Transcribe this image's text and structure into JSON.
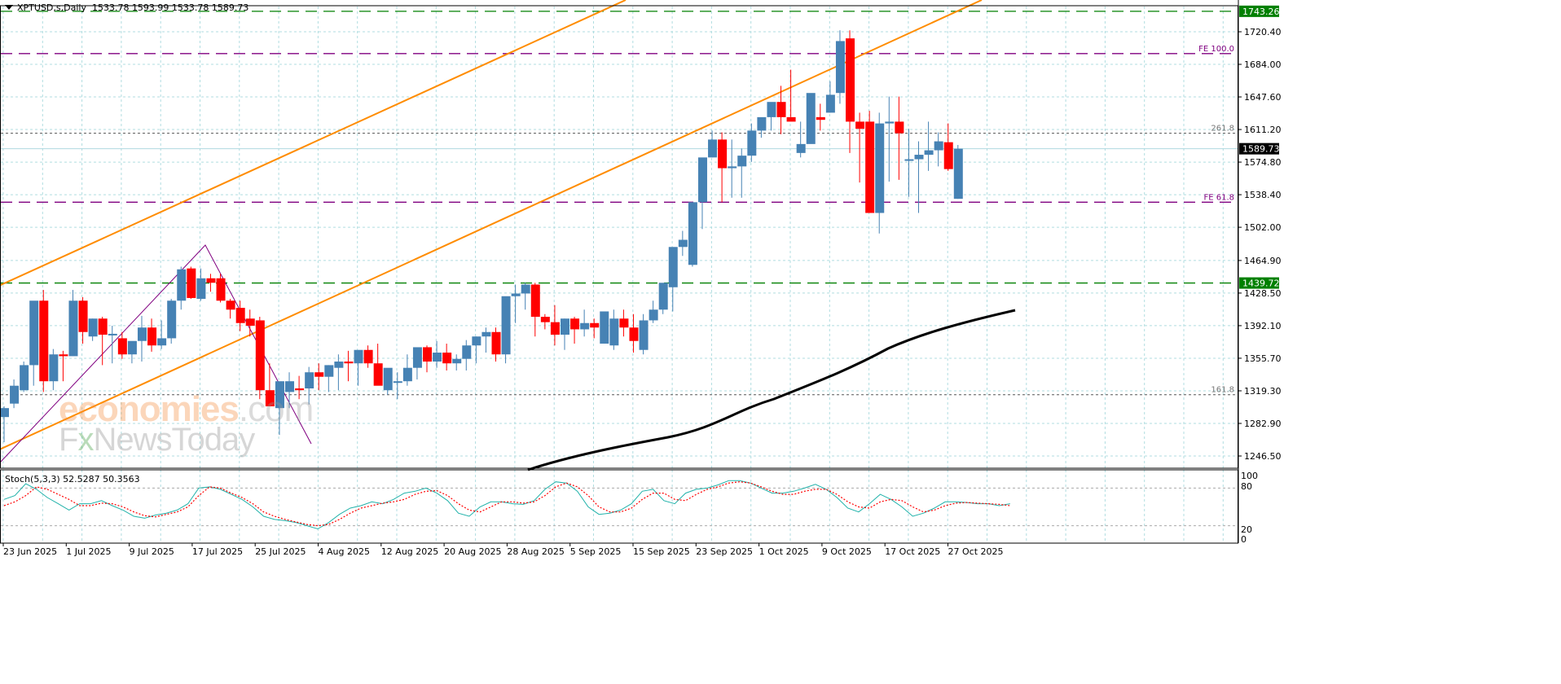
{
  "header": {
    "symbol": "XPTUSD,s,Daily",
    "ohlc": "1533.78 1593.99 1533.78 1589.73"
  },
  "indicator": {
    "label": "Stoch(5,3,3) 52.5287 50.3563",
    "main": 52.5287,
    "signal": 50.3563
  },
  "watermark": {
    "line1a": "economies",
    "line1b": ".com",
    "line2a": "F",
    "line2x": "x",
    "line2b": "NewsToday"
  },
  "colors": {
    "bull": "#4682b4",
    "bear": "#ff0000",
    "grid": "#b0dde0",
    "ma": "#000000",
    "channel": "#ff8c00",
    "fe": "#800080",
    "level": "#008000",
    "stoch_main": "#20b2aa",
    "stoch_signal": "#ff0000"
  },
  "chart_data": {
    "type": "candlestick",
    "title": "XPTUSD,s,Daily",
    "xlabel": "",
    "ylabel": "",
    "ylim": [
      1228.3,
      1750.0
    ],
    "price_ticks": [
      1720.4,
      1684.0,
      1647.6,
      1611.2,
      1574.8,
      1538.4,
      1502.0,
      1464.9,
      1428.5,
      1392.1,
      1355.7,
      1319.3,
      1282.9,
      1246.5
    ],
    "date_ticks": [
      "23 Jun 2025",
      "1 Jul 2025",
      "9 Jul 2025",
      "17 Jul 2025",
      "25 Jul 2025",
      "4 Aug 2025",
      "12 Aug 2025",
      "20 Aug 2025",
      "28 Aug 2025",
      "5 Sep 2025",
      "15 Sep 2025",
      "23 Sep 2025",
      "1 Oct 2025",
      "9 Oct 2025",
      "17 Oct 2025",
      "27 Oct 2025"
    ],
    "last_price": 1589.73,
    "horizontal_levels": [
      {
        "label": "1743.26",
        "price": 1743.26,
        "style": "green-dashed",
        "boxed": true
      },
      {
        "label": "1439.72",
        "price": 1439.72,
        "style": "green-dashed",
        "boxed": true
      },
      {
        "label": "FE 100.0",
        "price": 1696.0,
        "style": "purple-dashed"
      },
      {
        "label": "FE 61.8",
        "price": 1530.0,
        "style": "purple-dashed"
      },
      {
        "label": "261.8",
        "price": 1607.0,
        "style": "gray-dotted"
      },
      {
        "label": "161.8",
        "price": 1315.0,
        "style": "gray-dotted"
      }
    ],
    "candles": [
      [
        1290,
        1302,
        1262,
        1300
      ],
      [
        1305,
        1332,
        1300,
        1325
      ],
      [
        1320,
        1352,
        1318,
        1348
      ],
      [
        1348,
        1372,
        1325,
        1420
      ],
      [
        1420,
        1432,
        1318,
        1330
      ],
      [
        1330,
        1366,
        1320,
        1360
      ],
      [
        1360,
        1364,
        1330,
        1358
      ],
      [
        1358,
        1432,
        1360,
        1420
      ],
      [
        1420,
        1424,
        1372,
        1385
      ],
      [
        1380,
        1400,
        1375,
        1400
      ],
      [
        1400,
        1402,
        1348,
        1382
      ],
      [
        1382,
        1392,
        1350,
        1383
      ],
      [
        1378,
        1385,
        1355,
        1360
      ],
      [
        1360,
        1368,
        1350,
        1375
      ],
      [
        1375,
        1403,
        1352,
        1390
      ],
      [
        1390,
        1400,
        1363,
        1370
      ],
      [
        1370,
        1398,
        1366,
        1378
      ],
      [
        1378,
        1422,
        1372,
        1420
      ],
      [
        1420,
        1458,
        1410,
        1455
      ],
      [
        1456,
        1458,
        1422,
        1423
      ],
      [
        1422,
        1456,
        1420,
        1445
      ],
      [
        1445,
        1450,
        1430,
        1440
      ],
      [
        1445,
        1450,
        1418,
        1420
      ],
      [
        1420,
        1422,
        1400,
        1410
      ],
      [
        1412,
        1420,
        1386,
        1395
      ],
      [
        1400,
        1410,
        1380,
        1392
      ],
      [
        1398,
        1402,
        1310,
        1320
      ],
      [
        1320,
        1350,
        1305,
        1302
      ],
      [
        1300,
        1328,
        1270,
        1330
      ],
      [
        1318,
        1340,
        1300,
        1330
      ],
      [
        1322,
        1336,
        1310,
        1320
      ],
      [
        1322,
        1346,
        1304,
        1340
      ],
      [
        1340,
        1350,
        1320,
        1335
      ],
      [
        1335,
        1348,
        1318,
        1348
      ],
      [
        1345,
        1360,
        1320,
        1352
      ],
      [
        1352,
        1364,
        1330,
        1350
      ],
      [
        1350,
        1358,
        1325,
        1365
      ],
      [
        1365,
        1370,
        1345,
        1350
      ],
      [
        1350,
        1372,
        1345,
        1325
      ],
      [
        1320,
        1334,
        1315,
        1345
      ],
      [
        1330,
        1340,
        1310,
        1330
      ],
      [
        1330,
        1360,
        1325,
        1345
      ],
      [
        1345,
        1362,
        1332,
        1368
      ],
      [
        1368,
        1370,
        1340,
        1352
      ],
      [
        1352,
        1375,
        1345,
        1362
      ],
      [
        1362,
        1372,
        1342,
        1350
      ],
      [
        1350,
        1360,
        1342,
        1355
      ],
      [
        1355,
        1376,
        1342,
        1370
      ],
      [
        1370,
        1380,
        1350,
        1380
      ],
      [
        1380,
        1390,
        1362,
        1385
      ],
      [
        1385,
        1390,
        1352,
        1360
      ],
      [
        1360,
        1400,
        1350,
        1425
      ],
      [
        1425,
        1438,
        1395,
        1428
      ],
      [
        1428,
        1440,
        1410,
        1438
      ],
      [
        1438,
        1440,
        1380,
        1402
      ],
      [
        1402,
        1405,
        1388,
        1396
      ],
      [
        1396,
        1415,
        1370,
        1382
      ],
      [
        1382,
        1400,
        1365,
        1400
      ],
      [
        1400,
        1402,
        1372,
        1388
      ],
      [
        1388,
        1410,
        1380,
        1395
      ],
      [
        1395,
        1400,
        1378,
        1390
      ],
      [
        1372,
        1402,
        1372,
        1408
      ],
      [
        1370,
        1410,
        1365,
        1400
      ],
      [
        1400,
        1410,
        1380,
        1390
      ],
      [
        1390,
        1405,
        1362,
        1375
      ],
      [
        1365,
        1405,
        1360,
        1398
      ],
      [
        1398,
        1420,
        1395,
        1410
      ],
      [
        1410,
        1432,
        1405,
        1440
      ],
      [
        1435,
        1470,
        1408,
        1480
      ],
      [
        1480,
        1498,
        1470,
        1488
      ],
      [
        1460,
        1530,
        1458,
        1530
      ],
      [
        1530,
        1540,
        1500,
        1580
      ],
      [
        1580,
        1610,
        1580,
        1600
      ],
      [
        1600,
        1608,
        1530,
        1568
      ],
      [
        1568,
        1600,
        1535,
        1570
      ],
      [
        1570,
        1590,
        1535,
        1582
      ],
      [
        1582,
        1618,
        1575,
        1610
      ],
      [
        1610,
        1622,
        1602,
        1625
      ],
      [
        1625,
        1640,
        1610,
        1642
      ],
      [
        1642,
        1660,
        1606,
        1625
      ],
      [
        1625,
        1678,
        1625,
        1620
      ],
      [
        1585,
        1620,
        1580,
        1595
      ],
      [
        1595,
        1648,
        1605,
        1652
      ],
      [
        1625,
        1640,
        1610,
        1622
      ],
      [
        1630,
        1665,
        1630,
        1650
      ],
      [
        1652,
        1722,
        1640,
        1710
      ],
      [
        1713,
        1722,
        1585,
        1620
      ],
      [
        1620,
        1630,
        1552,
        1612
      ],
      [
        1620,
        1632,
        1521,
        1518
      ],
      [
        1518,
        1630,
        1495,
        1618
      ],
      [
        1618,
        1648,
        1553,
        1620
      ],
      [
        1620,
        1648,
        1555,
        1607
      ],
      [
        1578,
        1612,
        1536,
        1578
      ],
      [
        1578,
        1598,
        1518,
        1583
      ],
      [
        1583,
        1620,
        1565,
        1588
      ],
      [
        1588,
        1608,
        1570,
        1598
      ],
      [
        1597,
        1618,
        1565,
        1567
      ],
      [
        1533.78,
        1593.99,
        1533.78,
        1589.73
      ]
    ],
    "ma_series_note": "black moving average line rising from ~1229 to ~1425",
    "stochastic": {
      "ylim": [
        0,
        100
      ],
      "levels": [
        80,
        20
      ],
      "main_label": "52.5287",
      "signal_label": "50.3563"
    }
  }
}
